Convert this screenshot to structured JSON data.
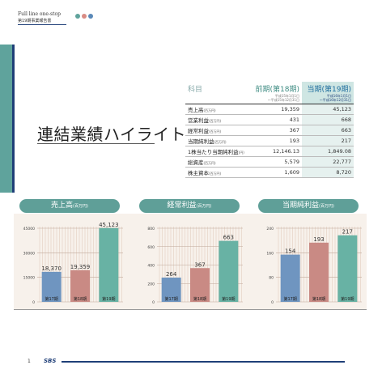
{
  "header": {
    "brand": "Full line one-stop",
    "report": "第19期事業報告書",
    "dot_colors": [
      "#5fa39c",
      "#d98b84",
      "#5a89b8"
    ]
  },
  "page_title": "連結業績ハイライト",
  "table": {
    "head": {
      "label": "科目",
      "prev": "前期(第18期)",
      "prev_period": [
        "平成15年1月1日",
        "〜平成15年12月31日"
      ],
      "curr": "当期(第19期)",
      "curr_period": [
        "平成16年1月1日",
        "〜平成16年12月31日"
      ]
    },
    "rows": [
      {
        "label": "売上高",
        "unit": "(百万円)",
        "prev": "19,359",
        "curr": "45,123"
      },
      {
        "label": "営業利益",
        "unit": "(百万円)",
        "prev": "431",
        "curr": "668"
      },
      {
        "label": "経常利益",
        "unit": "(百万円)",
        "prev": "367",
        "curr": "663"
      },
      {
        "label": "当期純利益",
        "unit": "(百万円)",
        "prev": "193",
        "curr": "217"
      },
      {
        "label": "1株当たり当期純利益",
        "unit": "(円)",
        "prev": "12,146.13",
        "curr": "1,849.08"
      },
      {
        "label": "総資産",
        "unit": "(百万円)",
        "prev": "5,579",
        "curr": "22,777"
      },
      {
        "label": "株主資本",
        "unit": "(百万円)",
        "prev": "1,609",
        "curr": "8,720"
      }
    ]
  },
  "chart_data": [
    {
      "type": "bar",
      "title": "売上高",
      "unit": "(百万円)",
      "categories": [
        "第17期",
        "第18期",
        "第19期"
      ],
      "values": [
        18370,
        19359,
        45123
      ],
      "labels": [
        "18,370",
        "19,359",
        "45,123"
      ],
      "ylim": [
        0,
        45000
      ],
      "yticks": [
        0,
        15000,
        30000,
        45000
      ],
      "ytick_labels": [
        "0",
        "15000",
        "30000",
        "45000"
      ],
      "colors": [
        "#6f95c0",
        "#c98a84",
        "#68b2a4"
      ]
    },
    {
      "type": "bar",
      "title": "経常利益",
      "unit": "(百万円)",
      "categories": [
        "第17期",
        "第18期",
        "第19期"
      ],
      "values": [
        264,
        367,
        663
      ],
      "labels": [
        "264",
        "367",
        "663"
      ],
      "ylim": [
        0,
        800
      ],
      "yticks": [
        0,
        200,
        400,
        600,
        800
      ],
      "ytick_labels": [
        "0",
        "200",
        "400",
        "600",
        "800"
      ],
      "colors": [
        "#6f95c0",
        "#c98a84",
        "#68b2a4"
      ]
    },
    {
      "type": "bar",
      "title": "当期純利益",
      "unit": "(百万円)",
      "categories": [
        "第17期",
        "第18期",
        "第19期"
      ],
      "values": [
        154,
        193,
        217
      ],
      "labels": [
        "154",
        "193",
        "217"
      ],
      "ylim": [
        0,
        240
      ],
      "yticks": [
        0,
        80,
        160,
        240
      ],
      "ytick_labels": [
        "0",
        "80",
        "160",
        "240"
      ],
      "colors": [
        "#6f95c0",
        "#c98a84",
        "#68b2a4"
      ]
    }
  ],
  "footer": {
    "page_number": "1",
    "logo": "SBS"
  }
}
